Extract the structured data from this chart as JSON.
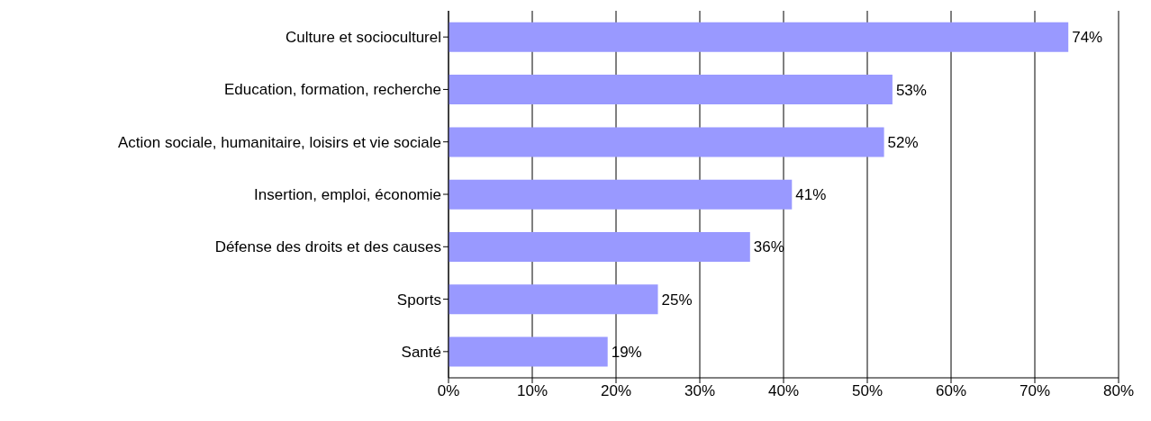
{
  "chart_data": {
    "type": "bar",
    "orientation": "horizontal",
    "categories": [
      "Culture et socioculturel",
      "Education, formation, recherche",
      "Action sociale, humanitaire, loisirs et vie sociale",
      "Insertion, emploi, économie",
      "Défense des droits et des causes",
      "Sports",
      "Santé"
    ],
    "values": [
      74,
      53,
      52,
      41,
      36,
      25,
      19
    ],
    "value_labels": [
      "74%",
      "53%",
      "52%",
      "41%",
      "36%",
      "25%",
      "19%"
    ],
    "color": "#9999ff",
    "xlim": [
      0,
      80
    ],
    "xticks": [
      {
        "value": 0,
        "label": "0%"
      },
      {
        "value": 10,
        "label": "10%"
      },
      {
        "value": 20,
        "label": "20%"
      },
      {
        "value": 30,
        "label": "30%"
      },
      {
        "value": 40,
        "label": "40%"
      },
      {
        "value": 50,
        "label": "50%"
      },
      {
        "value": 60,
        "label": "60%"
      },
      {
        "value": 70,
        "label": "70%"
      },
      {
        "value": 80,
        "label": "80%"
      }
    ],
    "grid": "x"
  }
}
